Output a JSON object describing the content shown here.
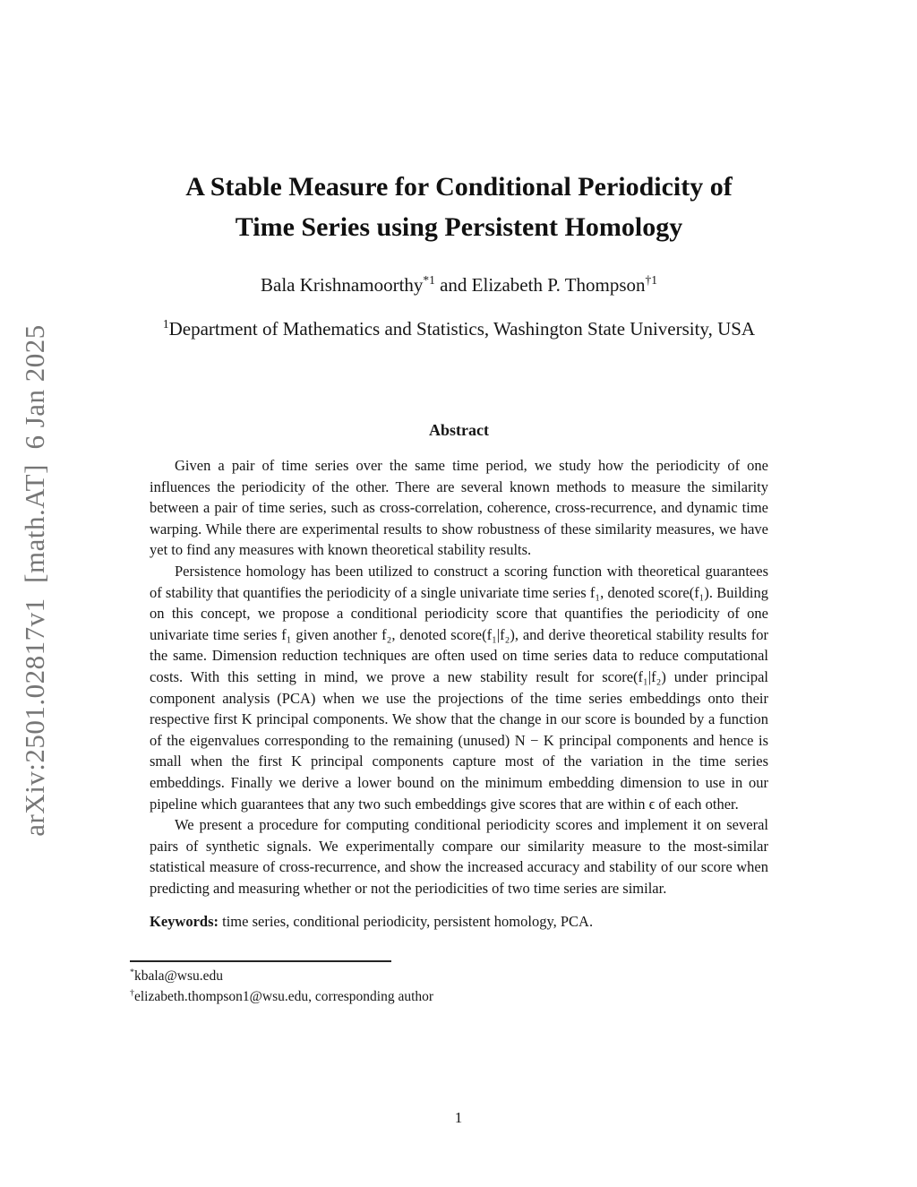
{
  "arxiv_banner": {
    "label": "arXiv:2501.02817v1  [math.AT]  6 Jan 2025"
  },
  "title": {
    "line1": "A Stable Measure for Conditional Periodicity of",
    "line2": "Time Series using Persistent Homology"
  },
  "authors": {
    "author1": "Bala Krishnamoorthy",
    "author1_sup": "*1",
    "separator": " and ",
    "author2": "Elizabeth P. Thompson",
    "author2_sup": "†1"
  },
  "affiliation": {
    "sup": "1",
    "text": "Department of Mathematics and Statistics, Washington State University, USA"
  },
  "abstract": {
    "heading": "Abstract",
    "paragraphs": [
      "Given a pair of time series over the same time period, we study how the periodicity of one influences the periodicity of the other. There are several known methods to measure the similarity between a pair of time series, such as cross-correlation, coherence, cross-recurrence, and dynamic time warping. While there are experimental results to show robustness of these similarity measures, we have yet to find any measures with known theoretical stability results.",
      "Persistence homology has been utilized to construct a scoring function with theoretical guarantees of stability that quantifies the periodicity of a single univariate time series f₁, denoted score(f₁). Building on this concept, we propose a conditional periodicity score that quantifies the periodicity of one univariate time series f₁ given another f₂, denoted score(f₁|f₂), and derive theoretical stability results for the same. Dimension reduction techniques are often used on time series data to reduce computational costs. With this setting in mind, we prove a new stability result for score(f₁|f₂) under principal component analysis (PCA) when we use the projections of the time series embeddings onto their respective first K principal components. We show that the change in our score is bounded by a function of the eigenvalues corresponding to the remaining (unused) N − K principal components and hence is small when the first K principal components capture most of the variation in the time series embeddings. Finally we derive a lower bound on the minimum embedding dimension to use in our pipeline which guarantees that any two such embeddings give scores that are within ϵ of each other.",
      "We present a procedure for computing conditional periodicity scores and implement it on several pairs of synthetic signals. We experimentally compare our similarity measure to the most-similar statistical measure of cross-recurrence, and show the increased accuracy and stability of our score when predicting and measuring whether or not the periodicities of two time series are similar."
    ]
  },
  "keywords": {
    "label": "Keywords:",
    "text": " time series, conditional periodicity, persistent homology, PCA."
  },
  "footnotes": [
    {
      "marker": "*",
      "text": "kbala@wsu.edu"
    },
    {
      "marker": "†",
      "text": "elizabeth.thompson1@wsu.edu, corresponding author"
    }
  ],
  "page": {
    "number": "1"
  },
  "colors": {
    "background": "#ffffff",
    "text": "#161616",
    "watermark_gray": "#767676"
  }
}
